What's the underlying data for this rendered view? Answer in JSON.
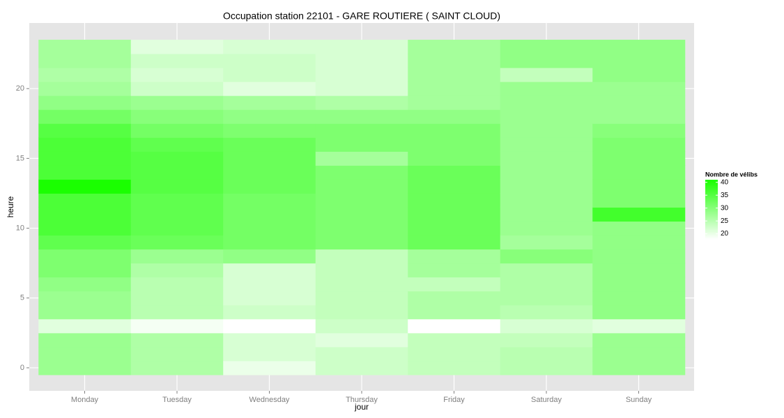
{
  "chart_data": {
    "type": "heatmap",
    "title": "Occupation station 22101 - GARE ROUTIERE ( SAINT CLOUD)",
    "x_label": "jour",
    "y_label": "heure",
    "categories": [
      "Monday",
      "Tuesday",
      "Wednesday",
      "Thursday",
      "Friday",
      "Saturday",
      "Sunday"
    ],
    "y": [
      0,
      1,
      2,
      3,
      4,
      5,
      6,
      7,
      8,
      9,
      10,
      11,
      12,
      13,
      14,
      15,
      16,
      17,
      18,
      19,
      20,
      21,
      22,
      23
    ],
    "values": [
      [
        28,
        28,
        28,
        21,
        28,
        28,
        29,
        31,
        31,
        34,
        36,
        36,
        36,
        41,
        36,
        36,
        36,
        35,
        32,
        29,
        27,
        26,
        27,
        27
      ],
      [
        26,
        26,
        26,
        19,
        25,
        25,
        25,
        26,
        28,
        33,
        34,
        34,
        34,
        35,
        35,
        35,
        34,
        32,
        30,
        28,
        23,
        22,
        23,
        21
      ],
      [
        20,
        22,
        22,
        18,
        23,
        22,
        22,
        22,
        29,
        32,
        32,
        32,
        32,
        33,
        33,
        33,
        33,
        31,
        29,
        27,
        21,
        23,
        23,
        22
      ],
      [
        23,
        23,
        21,
        23,
        24,
        24,
        24,
        24,
        24,
        31,
        31,
        31,
        31,
        31,
        31,
        27,
        31,
        31,
        29,
        26,
        22,
        22,
        22,
        22
      ],
      [
        24,
        24,
        24,
        18,
        26,
        26,
        24,
        27,
        27,
        33,
        33,
        33,
        33,
        33,
        33,
        31,
        31,
        31,
        29,
        27,
        27,
        27,
        27,
        27
      ],
      [
        25,
        25,
        24,
        22,
        25,
        26,
        26,
        26,
        30,
        27,
        28,
        28,
        28,
        28,
        28,
        28,
        28,
        28,
        28,
        28,
        28,
        24,
        29,
        29
      ],
      [
        28,
        28,
        28,
        21,
        29,
        29,
        29,
        29,
        29,
        29,
        29,
        37,
        31,
        31,
        31,
        31,
        31,
        30,
        28,
        28,
        28,
        29,
        29,
        29
      ]
    ],
    "ylim": [
      -1.65,
      24.7
    ],
    "yticks": [
      0,
      5,
      10,
      15,
      20
    ],
    "legend_title": "Nombre de vélibs",
    "clim": [
      18,
      41
    ],
    "cticks": [
      20,
      25,
      30,
      35,
      40
    ],
    "color_low": "#ffffff",
    "color_high": "#1aff00",
    "grid": true
  }
}
